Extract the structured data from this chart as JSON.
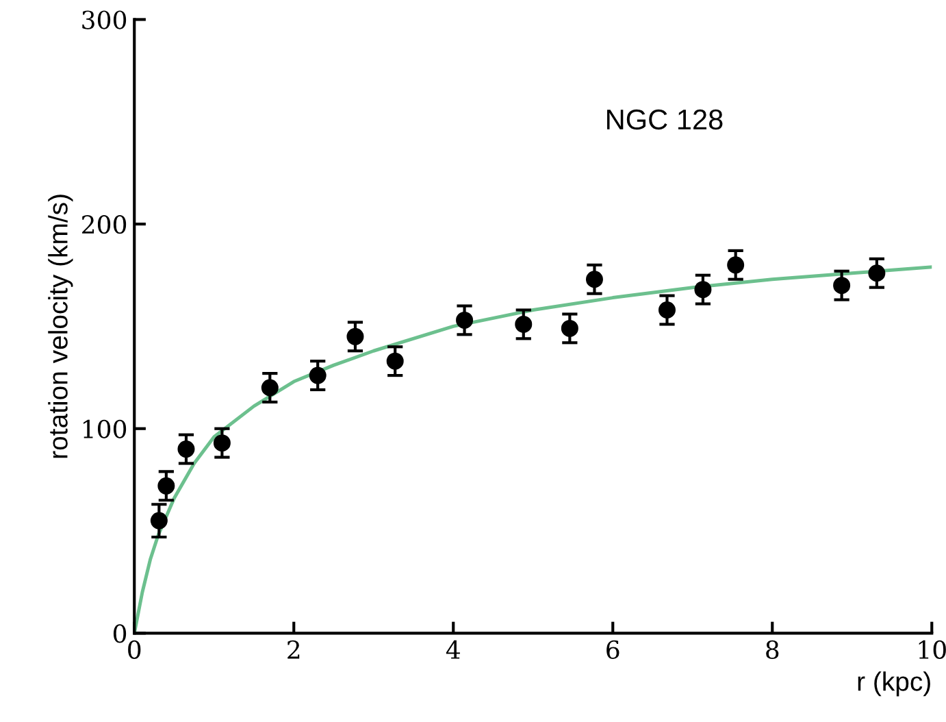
{
  "chart_data": {
    "type": "scatter",
    "xlabel": "r (kpc)",
    "ylabel": "rotation velocity (km/s)",
    "annotations": [
      "NGC 128"
    ],
    "xlim": [
      0,
      10
    ],
    "ylim": [
      0,
      300
    ],
    "xticks": [
      0,
      2,
      4,
      6,
      8,
      10
    ],
    "yticks": [
      0,
      100,
      200,
      300
    ],
    "grid": false,
    "legend": false,
    "series": [
      {
        "type": "line",
        "color": "#6cc08e",
        "x": [
          0,
          0.1,
          0.2,
          0.3,
          0.5,
          0.75,
          1,
          1.5,
          2,
          2.5,
          3,
          4,
          5,
          6,
          7,
          8,
          9,
          10
        ],
        "values": [
          0,
          20,
          36,
          48,
          66,
          83,
          96,
          111,
          123,
          131,
          138,
          150,
          158,
          164,
          169,
          173,
          176,
          179
        ],
        "marker": "none",
        "line_style": "solid"
      },
      {
        "color": "#000000",
        "marker": "circle",
        "x": [
          0.31,
          0.4,
          0.65,
          1.1,
          1.7,
          2.3,
          2.77,
          3.27,
          4.14,
          4.88,
          5.46,
          5.77,
          6.68,
          7.13,
          7.54,
          8.87,
          9.31
        ],
        "values": [
          55,
          72,
          90,
          93,
          120,
          126,
          145,
          133,
          153,
          151,
          149,
          173,
          158,
          168,
          180,
          170,
          176
        ],
        "errors": [
          8,
          7,
          7,
          7,
          7,
          7,
          7,
          7,
          7,
          7,
          7,
          7,
          7,
          7,
          7,
          7,
          7
        ]
      }
    ]
  }
}
